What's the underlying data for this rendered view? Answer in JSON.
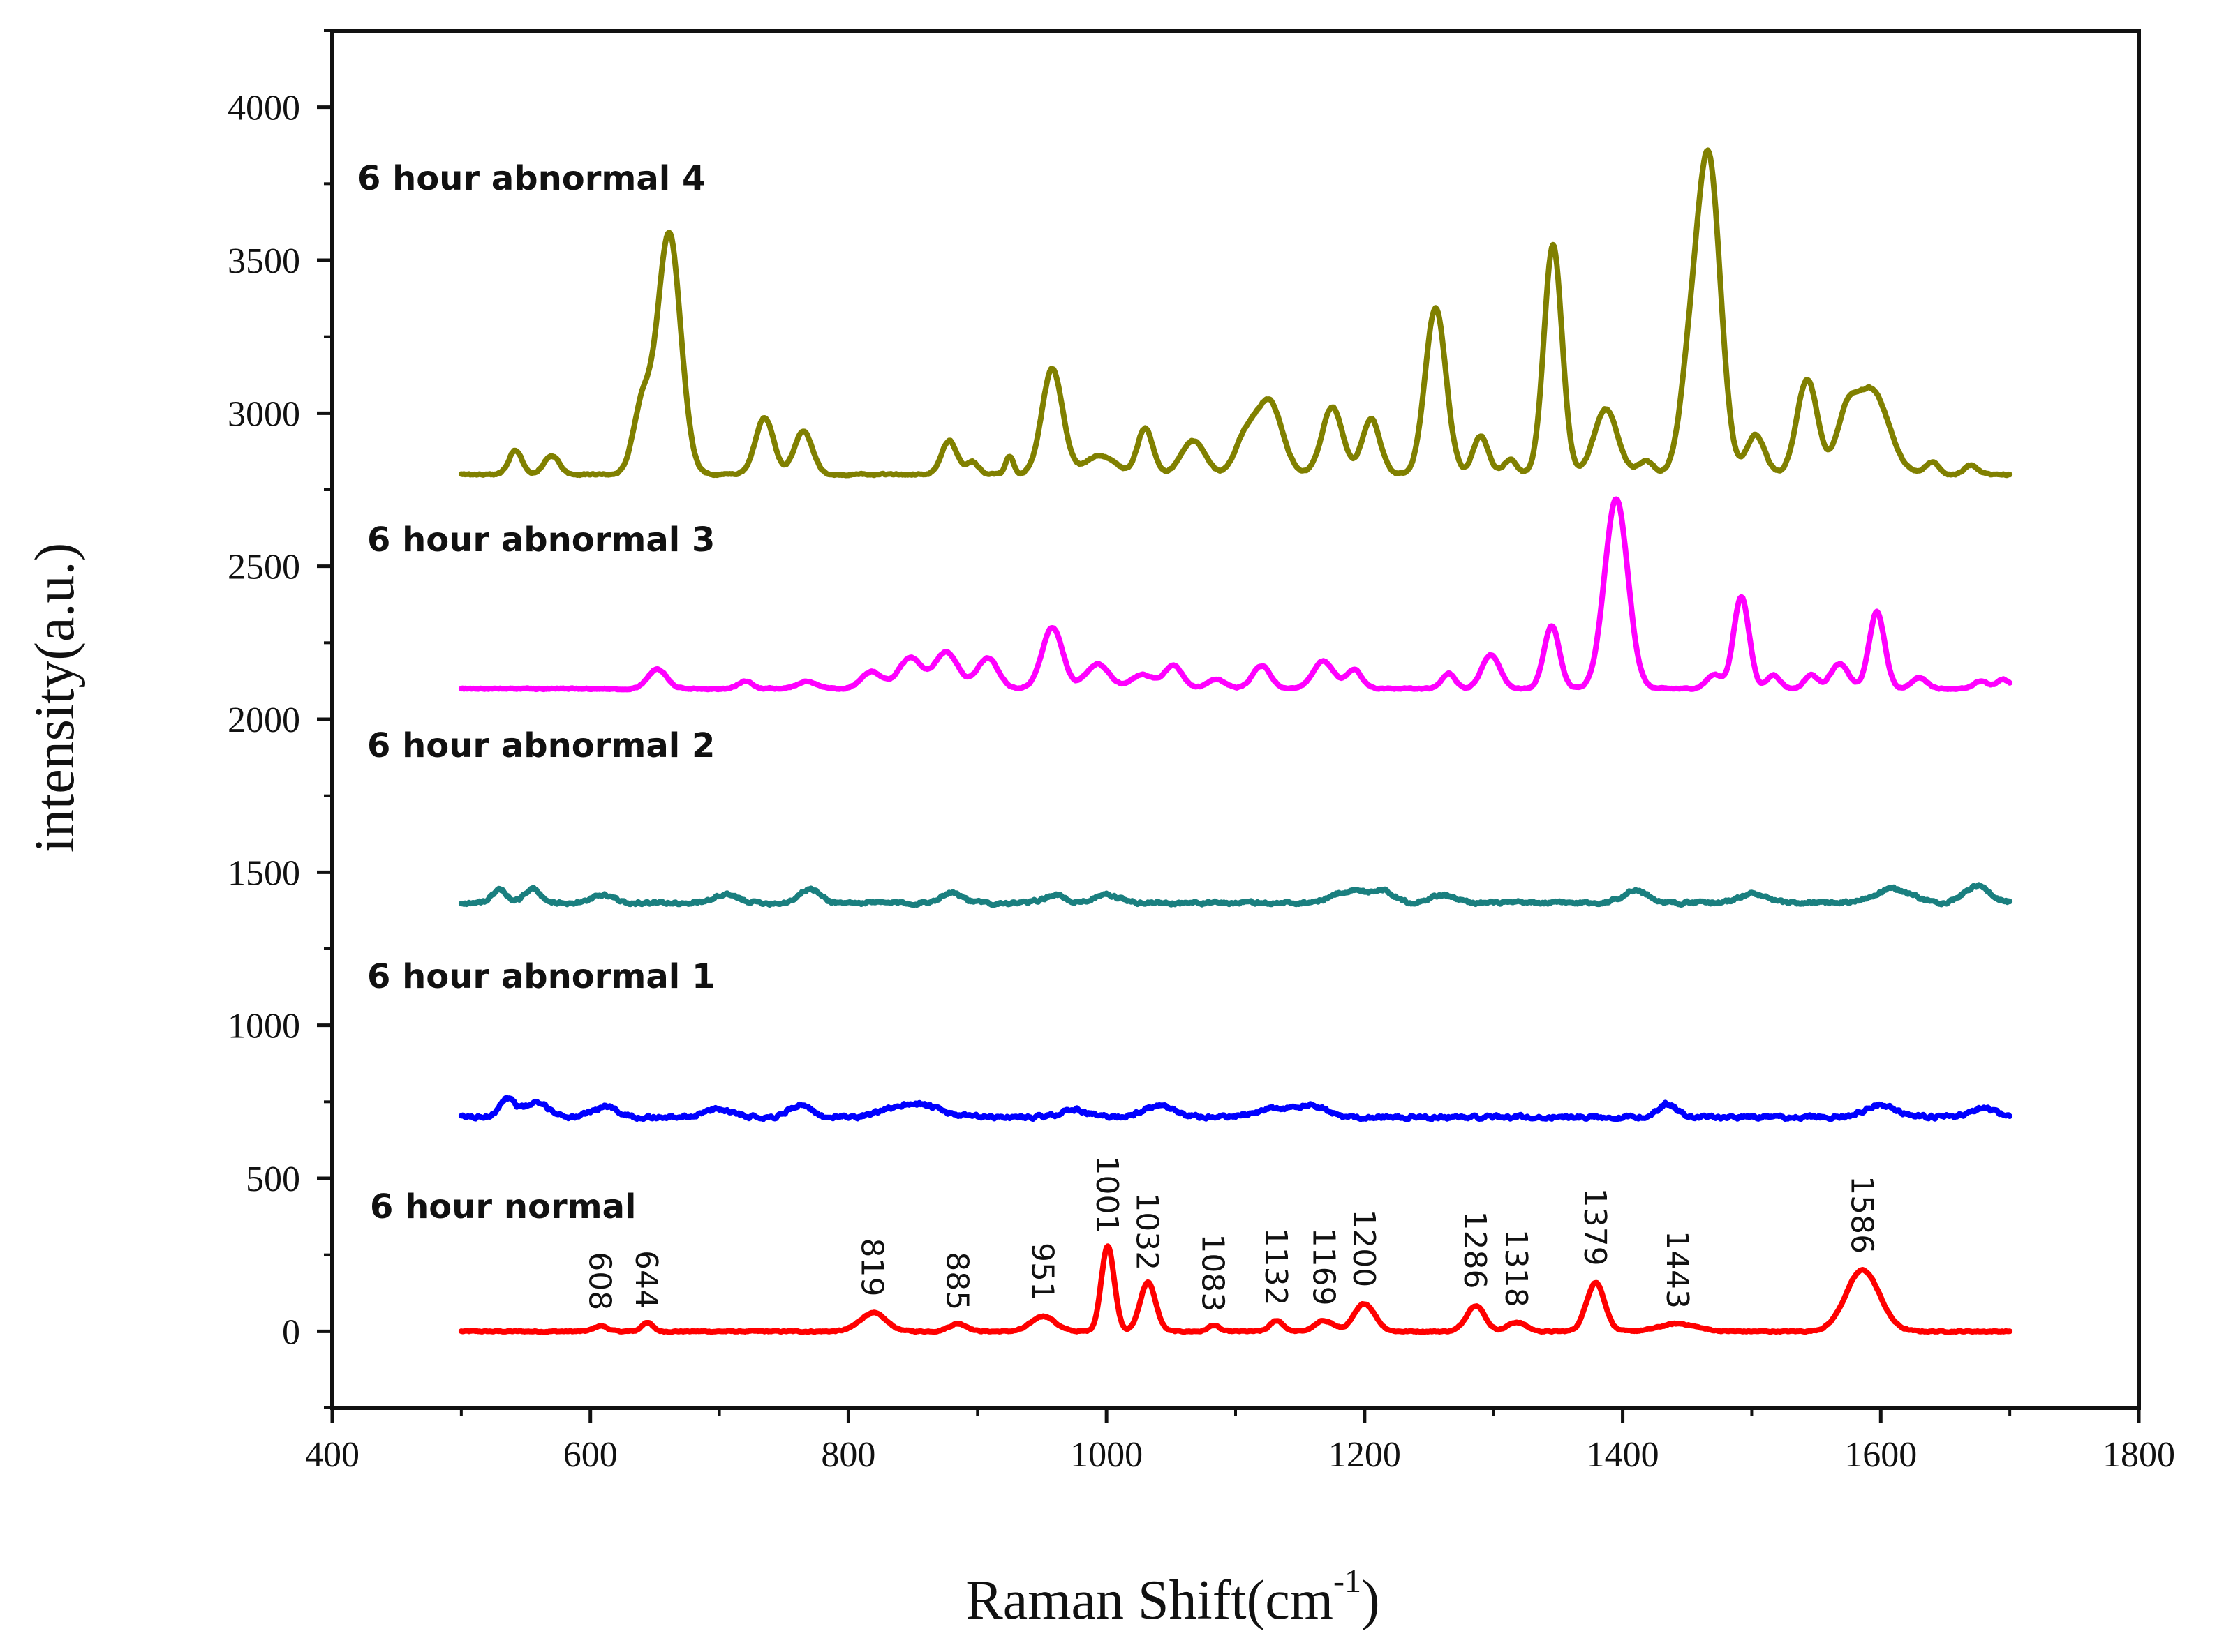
{
  "chart_data": {
    "type": "line",
    "xlabel_main": "Raman Shift(cm",
    "xlabel_sup": "-1",
    "xlabel_end": ")",
    "ylabel": "intensity(a.u.)",
    "xlim": [
      400,
      1800
    ],
    "ylim": [
      -250,
      4250
    ],
    "x_ticks": [
      "400",
      "600",
      "800",
      "1000",
      "1200",
      "1400",
      "1600",
      "1800"
    ],
    "y_ticks": [
      "0",
      "500",
      "1000",
      "1500",
      "2000",
      "2500",
      "3000",
      "3500",
      "4000"
    ],
    "x_range": [
      500,
      1700
    ],
    "series": [
      {
        "name": "6 hour normal",
        "color": "#ff0000",
        "baseline": 0,
        "noise": 4,
        "peaks": [
          [
            608,
            18,
            5
          ],
          [
            644,
            30,
            4
          ],
          [
            819,
            60,
            10
          ],
          [
            885,
            25,
            7
          ],
          [
            951,
            50,
            9
          ],
          [
            1001,
            280,
            5
          ],
          [
            1032,
            160,
            6
          ],
          [
            1083,
            20,
            4
          ],
          [
            1132,
            35,
            5
          ],
          [
            1169,
            35,
            7
          ],
          [
            1200,
            90,
            8
          ],
          [
            1286,
            85,
            7
          ],
          [
            1318,
            30,
            7
          ],
          [
            1379,
            160,
            7
          ],
          [
            1443,
            25,
            14
          ],
          [
            1586,
            200,
            13
          ]
        ]
      },
      {
        "name": "6 hour abnormal 1",
        "color": "#0000ff",
        "baseline": 700,
        "noise": 12,
        "peaks": [
          [
            535,
            60,
            6
          ],
          [
            558,
            45,
            10
          ],
          [
            612,
            35,
            9
          ],
          [
            700,
            25,
            12
          ],
          [
            762,
            40,
            8
          ],
          [
            850,
            45,
            18
          ],
          [
            975,
            25,
            10
          ],
          [
            1040,
            35,
            12
          ],
          [
            1130,
            30,
            14
          ],
          [
            1160,
            35,
            10
          ],
          [
            1435,
            45,
            7
          ],
          [
            1600,
            40,
            12
          ],
          [
            1680,
            30,
            10
          ]
        ]
      },
      {
        "name": "6 hour abnormal 2",
        "color": "#1a7f7f",
        "baseline": 1400,
        "noise": 10,
        "peaks": [
          [
            530,
            40,
            6
          ],
          [
            555,
            45,
            6
          ],
          [
            610,
            25,
            8
          ],
          [
            705,
            25,
            10
          ],
          [
            770,
            45,
            8
          ],
          [
            880,
            35,
            8
          ],
          [
            960,
            25,
            8
          ],
          [
            1000,
            25,
            10
          ],
          [
            1190,
            40,
            14
          ],
          [
            1215,
            35,
            8
          ],
          [
            1260,
            25,
            10
          ],
          [
            1410,
            40,
            10
          ],
          [
            1500,
            30,
            10
          ],
          [
            1610,
            45,
            14
          ],
          [
            1675,
            55,
            10
          ]
        ]
      },
      {
        "name": "6 hour abnormal 3",
        "color": "#ff00ff",
        "baseline": 2100,
        "noise": 4,
        "peaks": [
          [
            652,
            65,
            7
          ],
          [
            720,
            25,
            5
          ],
          [
            768,
            25,
            7
          ],
          [
            818,
            55,
            8
          ],
          [
            848,
            100,
            9
          ],
          [
            876,
            120,
            9
          ],
          [
            908,
            100,
            8
          ],
          [
            958,
            200,
            8
          ],
          [
            993,
            80,
            9
          ],
          [
            1028,
            45,
            9
          ],
          [
            1052,
            75,
            7
          ],
          [
            1085,
            30,
            7
          ],
          [
            1120,
            75,
            7
          ],
          [
            1168,
            90,
            8
          ],
          [
            1192,
            60,
            6
          ],
          [
            1265,
            50,
            5
          ],
          [
            1298,
            110,
            7
          ],
          [
            1345,
            205,
            6
          ],
          [
            1395,
            620,
            9
          ],
          [
            1471,
            45,
            6
          ],
          [
            1492,
            300,
            6
          ],
          [
            1517,
            45,
            5
          ],
          [
            1546,
            45,
            5
          ],
          [
            1568,
            80,
            7
          ],
          [
            1597,
            250,
            6
          ],
          [
            1630,
            35,
            6
          ],
          [
            1678,
            25,
            5
          ],
          [
            1695,
            30,
            5
          ]
        ]
      },
      {
        "name": "6 hour abnormal 4",
        "color": "#808000",
        "baseline": 2800,
        "noise": 5,
        "peaks": [
          [
            542,
            80,
            5
          ],
          [
            570,
            60,
            6
          ],
          [
            640,
            220,
            7
          ],
          [
            661,
            790,
            9
          ],
          [
            735,
            185,
            7
          ],
          [
            765,
            140,
            7
          ],
          [
            878,
            110,
            6
          ],
          [
            896,
            40,
            5
          ],
          [
            925,
            60,
            3
          ],
          [
            958,
            345,
            8
          ],
          [
            995,
            60,
            12
          ],
          [
            1030,
            150,
            6
          ],
          [
            1067,
            110,
            9
          ],
          [
            1107,
            110,
            8
          ],
          [
            1126,
            240,
            10
          ],
          [
            1175,
            220,
            8
          ],
          [
            1205,
            180,
            7
          ],
          [
            1255,
            545,
            8
          ],
          [
            1290,
            125,
            6
          ],
          [
            1313,
            50,
            5
          ],
          [
            1346,
            750,
            7
          ],
          [
            1387,
            215,
            9
          ],
          [
            1418,
            45,
            6
          ],
          [
            1452,
            300,
            8
          ],
          [
            1467,
            1000,
            9
          ],
          [
            1503,
            130,
            7
          ],
          [
            1543,
            310,
            8
          ],
          [
            1573,
            150,
            8
          ],
          [
            1593,
            275,
            13
          ],
          [
            1640,
            40,
            5
          ],
          [
            1670,
            30,
            5
          ]
        ]
      }
    ],
    "series_labels": [
      {
        "text": "6 hour abnormal 4"
      },
      {
        "text": "6 hour abnormal 3"
      },
      {
        "text": "6 hour abnormal 2"
      },
      {
        "text": "6 hour abnormal 1"
      },
      {
        "text": "6 hour normal"
      }
    ],
    "peak_labels": [
      {
        "text": "608",
        "x": 608,
        "y": 55
      },
      {
        "text": "644",
        "x": 644,
        "y": 60
      },
      {
        "text": "819",
        "x": 819,
        "y": 100
      },
      {
        "text": "885",
        "x": 885,
        "y": 55
      },
      {
        "text": "951",
        "x": 951,
        "y": 85
      },
      {
        "text": "1001",
        "x": 1001,
        "y": 305
      },
      {
        "text": "1032",
        "x": 1032,
        "y": 185
      },
      {
        "text": "1083",
        "x": 1083,
        "y": 50
      },
      {
        "text": "1132",
        "x": 1132,
        "y": 70
      },
      {
        "text": "1169",
        "x": 1169,
        "y": 70
      },
      {
        "text": "1200",
        "x": 1200,
        "y": 130
      },
      {
        "text": "1286",
        "x": 1286,
        "y": 125
      },
      {
        "text": "1318",
        "x": 1318,
        "y": 65
      },
      {
        "text": "1379",
        "x": 1379,
        "y": 200
      },
      {
        "text": "1443",
        "x": 1443,
        "y": 60
      },
      {
        "text": "1586",
        "x": 1586,
        "y": 240
      }
    ]
  }
}
